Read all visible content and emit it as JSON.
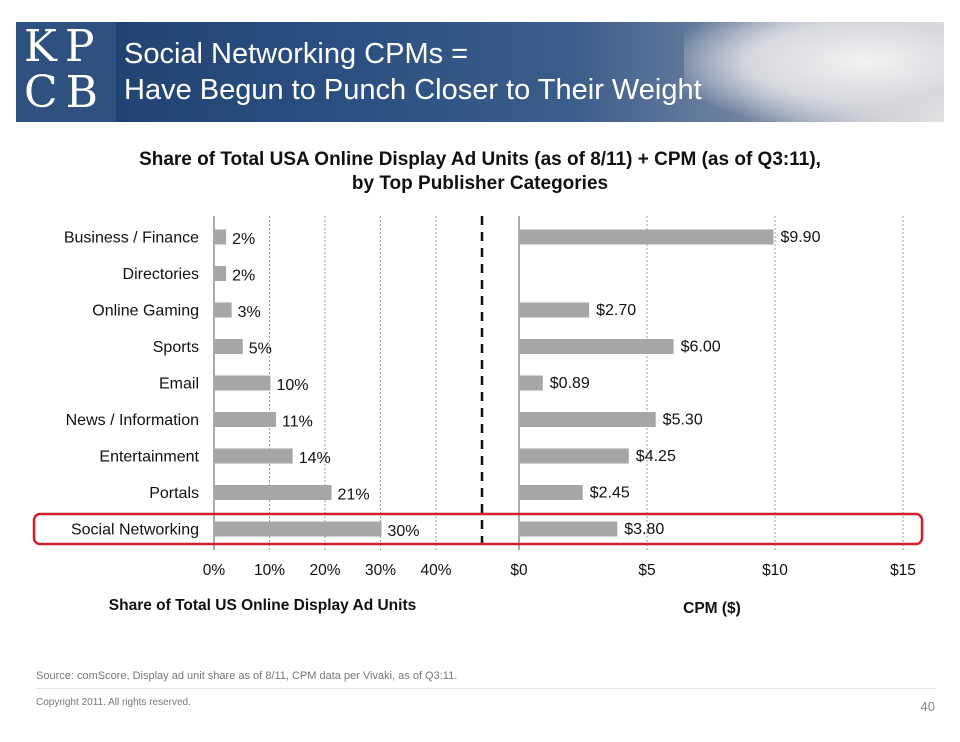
{
  "header": {
    "logo_text": "KPCB",
    "title_line1": "Social Networking CPMs =",
    "title_line2": "Have Begun to Punch Closer to Their Weight"
  },
  "colors": {
    "banner": "#2a4f80",
    "bar": "#a6a6a6",
    "highlight": "#d0202e",
    "divider": "#111111"
  },
  "chart_data": [
    {
      "type": "bar",
      "orientation": "horizontal",
      "title": "Share of Total USA Online Display Ad Units (as of 8/11) + CPM (as of Q3:11), by Top Publisher Categories",
      "xlabel": "Share of Total US Online Display Ad Units",
      "categories": [
        "Business / Finance",
        "Directories",
        "Online Gaming",
        "Sports",
        "Email",
        "News / Information",
        "Entertainment",
        "Portals",
        "Social Networking"
      ],
      "values": [
        2,
        2,
        3,
        5,
        10,
        11,
        14,
        21,
        30
      ],
      "value_labels": [
        "2%",
        "2%",
        "3%",
        "5%",
        "10%",
        "11%",
        "14%",
        "21%",
        "30%"
      ],
      "xlim": [
        0,
        40
      ],
      "xticks": [
        "0%",
        "10%",
        "20%",
        "30%",
        "40%"
      ],
      "grid": true
    },
    {
      "type": "bar",
      "orientation": "horizontal",
      "xlabel": "CPM ($)",
      "categories": [
        "Business / Finance",
        "Directories",
        "Online Gaming",
        "Sports",
        "Email",
        "News / Information",
        "Entertainment",
        "Portals",
        "Social Networking"
      ],
      "values": [
        9.9,
        null,
        2.7,
        6.0,
        0.89,
        5.3,
        4.25,
        2.45,
        3.8
      ],
      "value_labels": [
        "$9.90",
        "",
        "$2.70",
        "$6.00",
        "$0.89",
        "$5.30",
        "$4.25",
        "$2.45",
        "$3.80"
      ],
      "xlim": [
        0,
        15
      ],
      "xticks": [
        "$0",
        "$5",
        "$10",
        "$15"
      ],
      "grid": true
    }
  ],
  "highlighted_category": "Social Networking",
  "left_axis_title": "Share of Total US Online Display Ad Units",
  "right_axis_title": "CPM ($)",
  "source": "Source: comScore, Display ad unit share as of 8/11, CPM data per Vivaki, as of Q3:11.",
  "copyright": "Copyright 2011. All rights reserved.",
  "page_number": "40"
}
